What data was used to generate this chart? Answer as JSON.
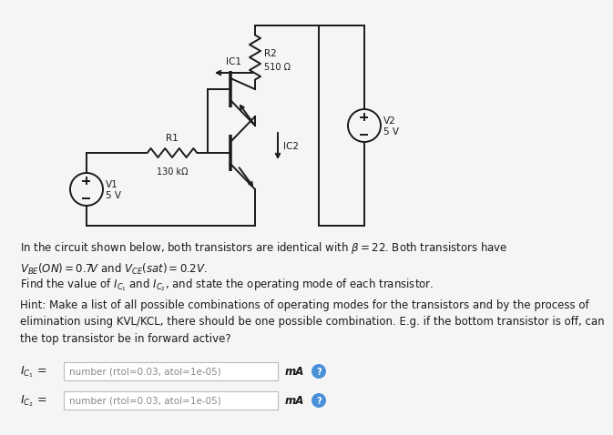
{
  "bg_color": "#f5f5f5",
  "line_color": "#1a1a1a",
  "text_color": "#1a1a1a",
  "gray_text": "#888888",
  "box_border": "#bbbbbb",
  "hint_blue": "#4a90d9",
  "r2_label": "R2",
  "r2_value": "510 Ω",
  "r1_label": "R1",
  "r1_value": "130 kΩ",
  "v1_label": "V1",
  "v1_value": "5 V",
  "v2_label": "V2",
  "v2_value": "5 V",
  "ic1_label": "IC1",
  "ic2_label": "IC2",
  "para1": "In the circuit shown below, both transistors are identical with $\\beta = 22$. Both transistors have\n$V_{BE}(ON) = 0.7V$ and $V_{CE}(sat) = 0.2V$.",
  "para2": "Find the value of $I_{C_1}$ and $I_{C_2}$, and state the operating mode of each transistor.",
  "para3": "Hint: Make a list of all possible combinations of operating modes for the transistors and by the process of\nelimination using KVL/KCL, there should be one possible combination. E.g. if the bottom transistor is off, can\nthe top transistor be in forward active?",
  "ic1_input": "number (rtol=0.03, atol=1e-05)",
  "ic2_input": "number (rtol=0.03, atol=1e-05)",
  "ma_label": "mA",
  "ic1_row_label": "$I_{C_1}$",
  "ic2_row_label": "$I_{C_2}$"
}
